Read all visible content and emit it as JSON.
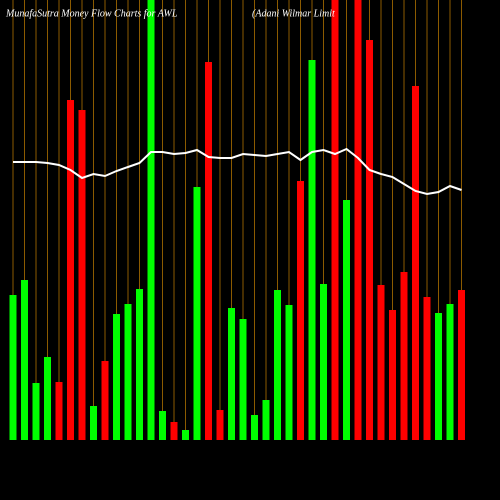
{
  "chart_data": {
    "type": "bar",
    "title": "MunafaSutra  Money Flow  Charts for AWL",
    "subtitle": "(Adani  Wilmar Limit",
    "categories": [
      null,
      null,
      null,
      null,
      null,
      null,
      null,
      null,
      null,
      null,
      null,
      null,
      null,
      null,
      null,
      null,
      null,
      null,
      null,
      null,
      null,
      null,
      null,
      null,
      null,
      null,
      null,
      null,
      null,
      null,
      null,
      null,
      null,
      null,
      null,
      null,
      null,
      null,
      null,
      null
    ],
    "series": [
      {
        "type": "bar",
        "values": [
          145,
          160,
          57,
          83,
          58,
          340,
          330,
          34,
          79,
          126,
          136,
          151,
          440,
          29,
          18,
          10,
          253,
          378,
          30,
          132,
          121,
          25,
          40,
          150,
          135,
          259,
          380,
          156,
          440,
          240,
          440,
          400,
          155,
          130,
          168,
          354,
          143,
          127,
          136,
          150
        ],
        "colors": [
          "#00ff00",
          "#00ff00",
          "#00ff00",
          "#00ff00",
          "#ff0000",
          "#ff0000",
          "#ff0000",
          "#00ff00",
          "#ff0000",
          "#00ff00",
          "#00ff00",
          "#00ff00",
          "#00ff00",
          "#00ff00",
          "#ff0000",
          "#00ff00",
          "#00ff00",
          "#ff0000",
          "#ff0000",
          "#00ff00",
          "#00ff00",
          "#00ff00",
          "#00ff00",
          "#00ff00",
          "#00ff00",
          "#ff0000",
          "#00ff00",
          "#00ff00",
          "#ff0000",
          "#00ff00",
          "#ff0000",
          "#ff0000",
          "#ff0000",
          "#ff0000",
          "#ff0000",
          "#ff0000",
          "#ff0000",
          "#00ff00",
          "#00ff00",
          "#ff0000"
        ]
      },
      {
        "type": "line",
        "color": "#ffffff",
        "values": [
          278,
          278,
          278,
          277,
          275,
          270,
          262,
          266,
          264,
          269,
          273,
          277,
          288,
          288,
          286,
          287,
          290,
          283,
          282,
          282,
          286,
          285,
          284,
          286,
          288,
          280,
          288,
          290,
          286,
          291,
          282,
          270,
          266,
          263,
          256,
          249,
          246,
          248,
          254,
          250
        ]
      }
    ],
    "ylim": [
      0,
      440
    ],
    "grid_color": "#8b5a00"
  }
}
